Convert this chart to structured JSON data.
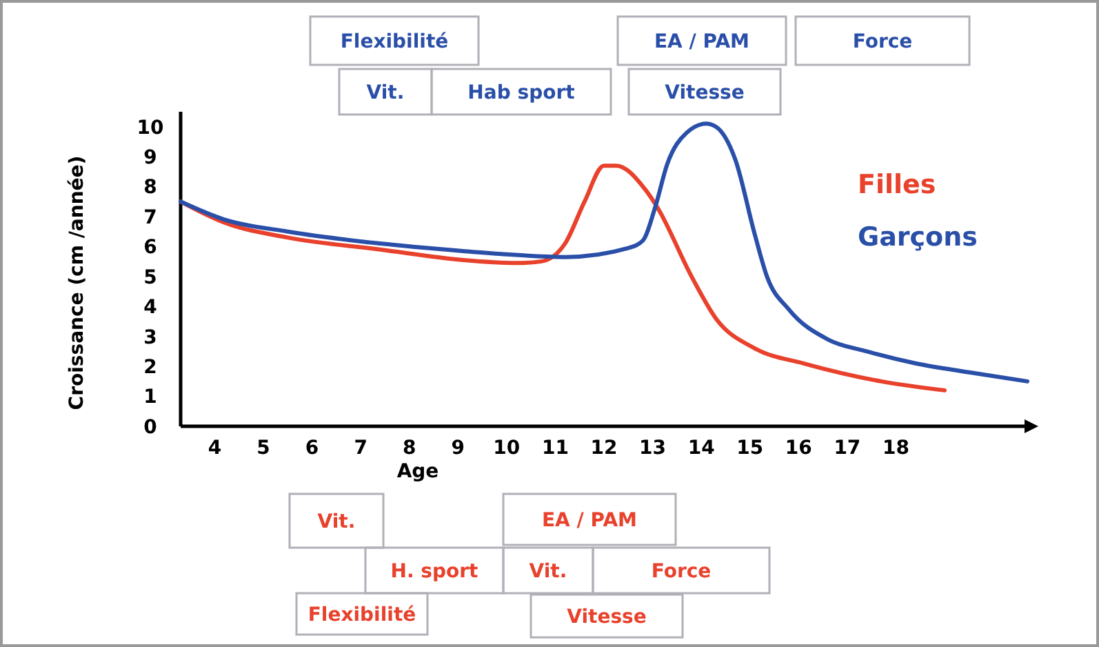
{
  "chart_data": {
    "type": "line",
    "xlabel": "Age",
    "ylabel": "Croissance (cm /année)",
    "xlim": [
      3.3,
      20.7
    ],
    "xticks": [
      4,
      5,
      6,
      7,
      8,
      9,
      10,
      11,
      12,
      13,
      14,
      15,
      16,
      17,
      18
    ],
    "ylim": [
      0,
      10.5
    ],
    "yticks": [
      0,
      1,
      2,
      3,
      4,
      5,
      6,
      7,
      8,
      9,
      10
    ],
    "legend": "top right",
    "series": [
      {
        "name": "Filles",
        "color": "#e8412c",
        "x": [
          3.3,
          4.2,
          5.5,
          7.4,
          9.1,
          10.2,
          10.7,
          11.2,
          11.6,
          12.0,
          12.25,
          12.85,
          13.1,
          13.8,
          14.3,
          15.1,
          16.1,
          17.7,
          19.0
        ],
        "values": [
          7.5,
          6.8,
          6.3,
          5.9,
          5.55,
          5.45,
          5.5,
          6.1,
          7.5,
          8.7,
          8.7,
          7.9,
          7.3,
          5.0,
          3.6,
          2.6,
          2.1,
          1.5,
          1.2
        ]
      },
      {
        "name": "Garçons",
        "color": "#2a4fa8",
        "x": [
          3.3,
          4.2,
          5.5,
          7.4,
          9.1,
          9.9,
          11.2,
          12.5,
          12.8,
          13.05,
          13.3,
          13.7,
          14.1,
          14.3,
          14.7,
          15.1,
          15.35,
          15.8,
          16.6,
          17.4,
          18.4,
          19.5,
          20.7
        ],
        "values": [
          7.5,
          6.9,
          6.5,
          6.1,
          5.85,
          5.75,
          5.65,
          5.95,
          6.2,
          7.3,
          8.75,
          9.8,
          10.1,
          10.0,
          8.9,
          6.4,
          5.0,
          3.9,
          2.9,
          2.5,
          2.1,
          1.8,
          1.5
        ]
      }
    ],
    "annotations": [
      "Flexibilité",
      "EA / PAM",
      "Force",
      "Vit.",
      "Hab sport",
      "Vitesse",
      "Vit.",
      "EA / PAM",
      "H. sport",
      "Vit.",
      "Force",
      "Flexibilité",
      "Vitesse"
    ]
  }
}
